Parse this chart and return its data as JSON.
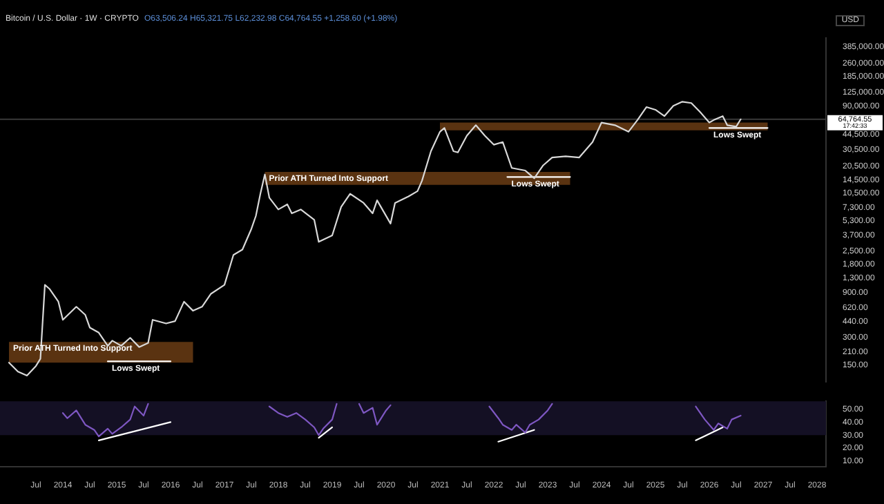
{
  "chart_data": [
    {
      "type": "line",
      "title": "Bitcoin / U.S. Dollar · 1W · CRYPTO",
      "subtitle": "O63,506.24 H65,321.75 L62,232.98 C64,764.55 +1,258.60 (+1.98%)",
      "ylabel": "USD",
      "log": true,
      "marker": "none",
      "tick_labels": "y",
      "xlim": [
        "2012-11",
        "2028-03"
      ],
      "ylim": [
        100,
        480000
      ],
      "yticks": [
        {
          "value": 150,
          "label": "150.00"
        },
        {
          "value": 210,
          "label": "210.00"
        },
        {
          "value": 300,
          "label": "300.00"
        },
        {
          "value": 440,
          "label": "440.00"
        },
        {
          "value": 620,
          "label": "620.00"
        },
        {
          "value": 900,
          "label": "900.00"
        },
        {
          "value": 1300,
          "label": "1,300.00"
        },
        {
          "value": 1800,
          "label": "1,800.00"
        },
        {
          "value": 2500,
          "label": "2,500.00"
        },
        {
          "value": 3700,
          "label": "3,700.00"
        },
        {
          "value": 5300,
          "label": "5,300.00"
        },
        {
          "value": 7300,
          "label": "7,300.00"
        },
        {
          "value": 10500,
          "label": "10,500.00"
        },
        {
          "value": 14500,
          "label": "14,500.00"
        },
        {
          "value": 20500,
          "label": "20,500.00"
        },
        {
          "value": 30500,
          "label": "30,500.00"
        },
        {
          "value": 44500,
          "label": "44,500.00"
        },
        {
          "value": 90000,
          "label": "90,000.00"
        },
        {
          "value": 125000,
          "label": "125,000.00"
        },
        {
          "value": 185000,
          "label": "185,000.00"
        },
        {
          "value": 260000,
          "label": "260,000.00"
        },
        {
          "value": 385000,
          "label": "385,000.00"
        }
      ],
      "series": [
        {
          "color": "#d9d9d9",
          "x": [
            "2013-01",
            "2013-03",
            "2013-05",
            "2013-07",
            "2013-08",
            "2013-09",
            "2013-10",
            "2013-12",
            "2014-01",
            "2014-04",
            "2014-06",
            "2014-07",
            "2014-09",
            "2014-11",
            "2014-12",
            "2015-02",
            "2015-04",
            "2015-06",
            "2015-08",
            "2015-09",
            "2015-12",
            "2016-02",
            "2016-04",
            "2016-06",
            "2016-08",
            "2016-10",
            "2017-01",
            "2017-03",
            "2017-05",
            "2017-07",
            "2017-08",
            "2017-09",
            "2017-10",
            "2017-11",
            "2018-01",
            "2018-03",
            "2018-04",
            "2018-06",
            "2018-09",
            "2018-10",
            "2019-01",
            "2019-03",
            "2019-05",
            "2019-08",
            "2019-10",
            "2019-11",
            "2020-02",
            "2020-03",
            "2020-06",
            "2020-08",
            "2020-09",
            "2020-11",
            "2021-01",
            "2021-02",
            "2021-04",
            "2021-05",
            "2021-07",
            "2021-09",
            "2021-11",
            "2022-01",
            "2022-03",
            "2022-05",
            "2022-08",
            "2022-10",
            "2022-12",
            "2023-02",
            "2023-05",
            "2023-08",
            "2023-11",
            "2024-01",
            "2024-04",
            "2024-07",
            "2024-09",
            "2024-11",
            "2025-01",
            "2025-03",
            "2025-05",
            "2025-07",
            "2025-09",
            "2025-11",
            "2026-01",
            "2026-02",
            "2026-04",
            "2026-05",
            "2026-07",
            "2026-08"
          ],
          "values": [
            160,
            128,
            116,
            147,
            176,
            1090,
            990,
            720,
            460,
            635,
            520,
            380,
            335,
            242,
            275,
            242,
            295,
            235,
            260,
            460,
            420,
            445,
            720,
            575,
            635,
            875,
            1090,
            2280,
            2600,
            4340,
            5970,
            10300,
            16600,
            9360,
            7000,
            7950,
            6360,
            7000,
            5430,
            3150,
            3690,
            7470,
            10300,
            8220,
            6360,
            8780,
            4940,
            8220,
            9660,
            11000,
            14200,
            29500,
            47600,
            52300,
            29500,
            28600,
            43200,
            56000,
            43200,
            34600,
            36900,
            19500,
            18300,
            15100,
            20800,
            25200,
            26000,
            25200,
            36900,
            59700,
            56000,
            47600,
            63600,
            87600,
            82000,
            70000,
            90400,
            99900,
            96700,
            77100,
            59700,
            63600,
            70000,
            56000,
            54100,
            64764.55
          ]
        },
        {
          "color": "#5a3311",
          "x": [
            "2013-01",
            "2016-06"
          ],
          "values": [
            null,
            null
          ],
          "lower": [
            160,
            160
          ],
          "upper": [
            267,
            267
          ]
        },
        {
          "color": "#5a3311",
          "x": [
            "2017-10",
            "2023-06"
          ],
          "values": [
            null,
            null
          ],
          "lower": [
            12850,
            12850
          ],
          "upper": [
            17700,
            17700
          ]
        },
        {
          "color": "#5a3311",
          "x": [
            "2021-01",
            "2027-02"
          ],
          "values": [
            null,
            null
          ],
          "lower": [
            49400,
            49400
          ],
          "upper": [
            59800,
            59800
          ]
        },
        {
          "color": "#ffffff",
          "x": [
            "2014-11",
            "2016-01"
          ],
          "values": [
            165,
            165
          ]
        },
        {
          "color": "#ffffff",
          "x": [
            "2022-04",
            "2023-06"
          ],
          "values": [
            15600,
            15600
          ]
        },
        {
          "color": "#ffffff",
          "x": [
            "2026-01",
            "2027-02"
          ],
          "values": [
            52300,
            52300
          ]
        }
      ],
      "ref_lines": [
        {
          "axis": "y",
          "value": 64764.55,
          "label": "64,764.55",
          "color": "#3a3a3a"
        }
      ],
      "annotations": [
        {
          "text": "Prior ATH Turned Into Support",
          "x": "2013-01",
          "y": 267
        },
        {
          "text": "Prior ATH Turned Into Support",
          "x": "2017-10",
          "y": 17700
        },
        {
          "text": "Lows Swept",
          "x": "2014-11",
          "y": 165
        },
        {
          "text": "Lows Swept",
          "x": "2022-04",
          "y": 15600
        },
        {
          "text": "Lows Swept",
          "x": "2026-01",
          "y": 52300
        },
        "17:42:33"
      ]
    },
    {
      "type": "line",
      "marker": "none",
      "xlim": [
        "2012-11",
        "2028-03"
      ],
      "ylim": [
        6,
        56
      ],
      "xticks": [
        {
          "value": "2013-07",
          "label": "Jul"
        },
        {
          "value": "2014",
          "label": "2014"
        },
        {
          "value": "2014-07",
          "label": "Jul"
        },
        {
          "value": "2015",
          "label": "2015"
        },
        {
          "value": "2015-07",
          "label": "Jul"
        },
        {
          "value": "2016",
          "label": "2016"
        },
        {
          "value": "2016-07",
          "label": "Jul"
        },
        {
          "value": "2017",
          "label": "2017"
        },
        {
          "value": "2017-07",
          "label": "Jul"
        },
        {
          "value": "2018",
          "label": "2018"
        },
        {
          "value": "2018-07",
          "label": "Jul"
        },
        {
          "value": "2019",
          "label": "2019"
        },
        {
          "value": "2019-07",
          "label": "Jul"
        },
        {
          "value": "2020",
          "label": "2020"
        },
        {
          "value": "2020-07",
          "label": "Jul"
        },
        {
          "value": "2021",
          "label": "2021"
        },
        {
          "value": "2021-07",
          "label": "Jul"
        },
        {
          "value": "2022",
          "label": "2022"
        },
        {
          "value": "2022-07",
          "label": "Jul"
        },
        {
          "value": "2023",
          "label": "2023"
        },
        {
          "value": "2023-07",
          "label": "Jul"
        },
        {
          "value": "2024",
          "label": "2024"
        },
        {
          "value": "2024-07",
          "label": "Jul"
        },
        {
          "value": "2025",
          "label": "2025"
        },
        {
          "value": "2025-07",
          "label": "Jul"
        },
        {
          "value": "2026",
          "label": "2026"
        },
        {
          "value": "2026-07",
          "label": "Jul"
        },
        {
          "value": "2027",
          "label": "2027"
        },
        {
          "value": "2027-07",
          "label": "Jul"
        },
        {
          "value": "2028",
          "label": "2028"
        }
      ],
      "yticks": [
        {
          "value": 10,
          "label": "10.00"
        },
        {
          "value": 20,
          "label": "20.00"
        },
        {
          "value": 30,
          "label": "30.00"
        },
        {
          "value": 40,
          "label": "40.00"
        },
        {
          "value": 50,
          "label": "50.00"
        }
      ],
      "bands": [
        {
          "axis": "y",
          "from": 30,
          "to": 56,
          "color": "#141024"
        }
      ],
      "series": [
        {
          "color": "#7e57c2",
          "x": [
            "2014-01",
            "2014-02",
            "2014-04",
            "2014-06",
            "2014-08",
            "2014-09",
            "2014-11",
            "2014-12",
            "2015-02",
            "2015-04",
            "2015-05",
            "2015-07",
            "2015-08",
            "2016-06",
            "2017-11",
            "2018-01",
            "2018-03",
            "2018-05",
            "2018-07",
            "2018-09",
            "2018-10",
            "2018-11",
            "2019-01",
            "2019-02",
            "2019-05",
            "2019-07",
            "2019-08",
            "2019-10",
            "2019-11",
            "2020-01",
            "2020-02",
            "2021-01",
            "2021-12",
            "2022-02",
            "2022-03",
            "2022-05",
            "2022-06",
            "2022-08",
            "2022-09",
            "2022-11",
            "2023-01",
            "2023-02",
            "2024-01",
            "2025-10",
            "2025-12",
            "2026-02",
            "2026-03",
            "2026-05",
            "2026-06",
            "2026-08"
          ],
          "values": [
            47,
            43,
            49,
            38,
            34,
            29,
            35,
            31,
            36,
            42,
            52,
            45,
            54,
            null,
            52,
            47,
            44,
            47,
            42,
            36,
            30,
            35,
            42,
            54,
            null,
            54,
            47,
            51,
            38,
            49,
            53,
            null,
            52,
            43,
            38,
            34,
            38,
            32,
            38,
            42,
            49,
            54,
            null,
            52,
            42,
            34,
            39,
            35,
            42,
            45
          ]
        },
        {
          "color": "#ffffff",
          "x": [
            "2014-09",
            "2016-01"
          ],
          "values": [
            26,
            40
          ]
        },
        {
          "color": "#ffffff",
          "x": [
            "2018-10",
            "2019-01"
          ],
          "values": [
            28,
            36
          ]
        },
        {
          "color": "#ffffff",
          "x": [
            "2022-02",
            "2022-10"
          ],
          "values": [
            25,
            34
          ]
        },
        {
          "color": "#ffffff",
          "x": [
            "2025-10",
            "2026-04"
          ],
          "values": [
            26,
            36
          ]
        }
      ]
    }
  ]
}
